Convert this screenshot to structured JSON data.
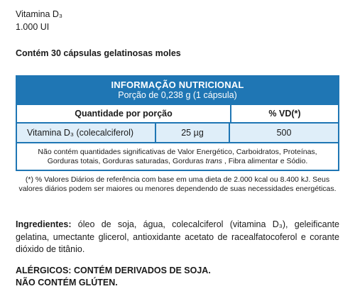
{
  "product": {
    "name": "Vitamina D₃",
    "dose": "1.000 UI",
    "content": "Contém 30 cápsulas gelatinosas moles"
  },
  "nutrition_table": {
    "title": "INFORMAÇÃO NUTRICIONAL",
    "portion": "Porção de 0,238 g (1 cápsula)",
    "column_headers": {
      "quantity": "Quantidade por porção",
      "vd": "% VD(*)"
    },
    "rows": [
      {
        "name": "Vitamina D₃  (colecalciferol)",
        "amount": "25 µg",
        "vd": "500"
      }
    ],
    "note_part1": "Não contém quantidades significativas de Valor Energético, Carboidratos, Proteínas, Gorduras totais, Gorduras saturadas, Gorduras ",
    "note_trans": "trans",
    "note_part2": " , Fibra alimentar e Sódio."
  },
  "footnote": "(*) % Valores Diários de referência com base em uma dieta de 2.000 kcal ou 8.400 kJ. Seus valores diários podem ser maiores ou menores dependendo de suas necessidades energéticas.",
  "ingredients": {
    "label": "Ingredientes:",
    "text": " óleo de soja, água, colecalciferol (vitamina D₃), geleificante gelatina, umectante glicerol, antioxidante acetato de racealfatocoferol e corante dióxido de titânio."
  },
  "allergens": {
    "line1": "ALÉRGICOS: CONTÉM DERIVADOS DE SOJA.",
    "line2": "NÃO CONTÉM GLÚTEN."
  }
}
